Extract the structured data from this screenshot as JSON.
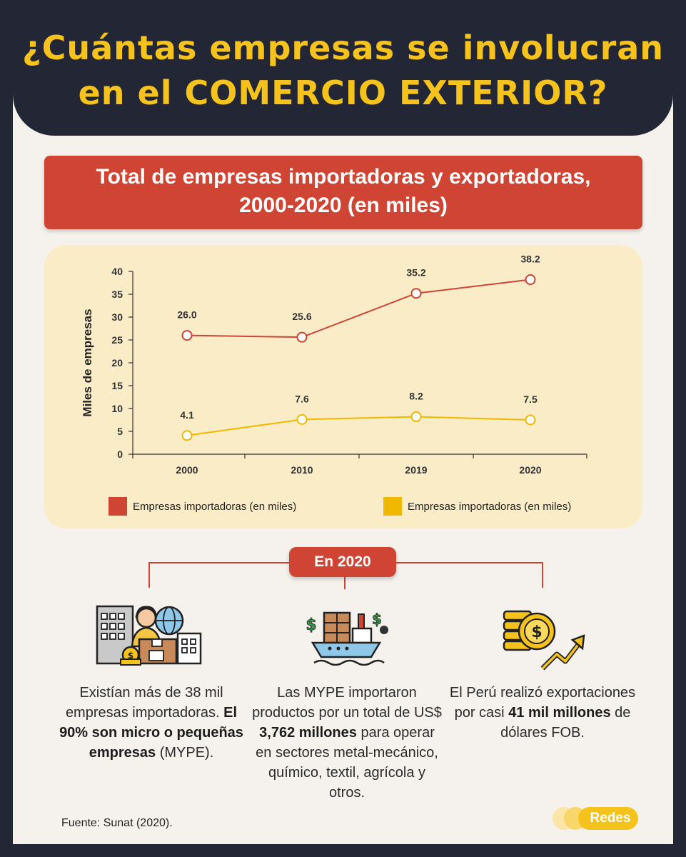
{
  "header": {
    "title_line1": "¿Cuántas empresas se involucran",
    "title_line2": "en el COMERCIO EXTERIOR?",
    "title_color": "#f6c21c"
  },
  "chart_title": {
    "line1": "Total de empresas importadoras y exportadoras,",
    "line2": "2000-2020 (en miles)"
  },
  "chart_data": {
    "type": "line",
    "ylabel": "Miles de empresas",
    "xlabel": "",
    "x": [
      "2000",
      "2010",
      "2019",
      "2020"
    ],
    "ylim": [
      0,
      40
    ],
    "yticks": [
      0,
      5,
      10,
      15,
      20,
      25,
      30,
      35,
      40
    ],
    "series": [
      {
        "name": "Empresas importadoras (en miles)",
        "color": "#cf4433",
        "values": [
          26.0,
          25.6,
          35.2,
          38.2
        ],
        "labels": [
          "26.0",
          "25.6",
          "35.2",
          "38.2"
        ]
      },
      {
        "name": "Empresas importadoras (en miles)",
        "color": "#f0b800",
        "values": [
          4.1,
          7.6,
          8.2,
          7.5
        ],
        "labels": [
          "4.1",
          "7.6",
          "8.2",
          "7.5"
        ]
      }
    ],
    "grid": false,
    "legend": "bottom"
  },
  "summary": {
    "pill_label": "En 2020",
    "col1": {
      "text_a": "Existían más de 38 mil empresas importadoras.",
      "text_b": "El 90% son micro o pequeñas empresas",
      "text_c": "(MYPE)."
    },
    "col2": {
      "text_a": "Las MYPE importaron productos por un total de US$",
      "text_b": "3,762 millones",
      "text_c": "para operar en sectores metal-mecánico, químico, textil, agrícola y otros."
    },
    "col3": {
      "text_a": "El Perú realizó exportaciones por casi",
      "text_b": "41 mil millones",
      "text_c": "de dólares FOB."
    }
  },
  "footer": {
    "source": "Fuente: Sunat (2020).",
    "logo": "Redes"
  }
}
